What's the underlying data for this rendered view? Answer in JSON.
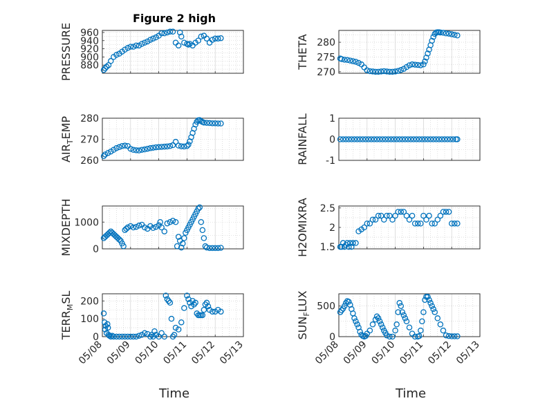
{
  "figure_title": "Figure 2 high",
  "xlabel": "Time",
  "colors": {
    "marker": "#0072BD",
    "axis": "#262626",
    "grid": "#d0d0d0"
  },
  "chart_data": [
    {
      "type": "scatter",
      "title": "Figure 2 high",
      "ylabel": "PRESSURE",
      "ylabel_sub": "",
      "yticks": [
        "880",
        "900",
        "920",
        "940",
        "960"
      ],
      "ylim": [
        860,
        965
      ],
      "xticks": [],
      "xlim": [
        "05/08",
        "05/13"
      ],
      "x": [
        0.05,
        0.1,
        0.15,
        0.22,
        0.3,
        0.4,
        0.5,
        0.6,
        0.7,
        0.8,
        0.9,
        1.0,
        1.1,
        1.2,
        1.3,
        1.4,
        1.5,
        1.6,
        1.7,
        1.8,
        1.9,
        2.0,
        2.1,
        2.2,
        2.3,
        2.4,
        2.5,
        2.6,
        2.7,
        2.75,
        2.8,
        2.9,
        3.0,
        3.05,
        3.1,
        3.2,
        3.3,
        3.4,
        3.5,
        3.6,
        3.7,
        3.8,
        3.9,
        4.0,
        4.1,
        4.2
      ],
      "y": [
        868,
        872,
        876,
        880,
        890,
        900,
        905,
        908,
        913,
        918,
        922,
        925,
        925,
        928,
        928,
        932,
        935,
        938,
        942,
        945,
        948,
        952,
        958,
        958,
        960,
        962,
        962,
        935,
        928,
        960,
        950,
        935,
        932,
        930,
        932,
        928,
        935,
        940,
        950,
        952,
        945,
        935,
        942,
        945,
        945,
        946
      ]
    },
    {
      "type": "scatter",
      "title": "",
      "ylabel": "THETA",
      "ylabel_sub": "",
      "yticks": [
        "270",
        "275",
        "280"
      ],
      "ylim": [
        269.5,
        284
      ],
      "xticks": [],
      "xlim": [
        "05/08",
        "05/13"
      ],
      "x": [
        0.05,
        0.1,
        0.2,
        0.3,
        0.4,
        0.5,
        0.6,
        0.7,
        0.8,
        0.9,
        1.0,
        1.1,
        1.2,
        1.3,
        1.4,
        1.5,
        1.6,
        1.7,
        1.8,
        1.9,
        2.0,
        2.1,
        2.2,
        2.3,
        2.4,
        2.5,
        2.6,
        2.7,
        2.8,
        2.9,
        3.0,
        3.05,
        3.1,
        3.15,
        3.2,
        3.25,
        3.3,
        3.35,
        3.4,
        3.45,
        3.5,
        3.55,
        3.6,
        3.7,
        3.8,
        3.9,
        4.0,
        4.1,
        4.2
      ],
      "y": [
        274.5,
        274.3,
        274.1,
        274,
        273.8,
        273.6,
        273.4,
        273,
        272.5,
        271.5,
        270.5,
        270.2,
        270.1,
        270,
        270,
        270.1,
        270.2,
        270.1,
        270,
        270,
        270.1,
        270.3,
        270.6,
        271,
        271.6,
        272.2,
        272.5,
        272.4,
        272.3,
        272.2,
        272.5,
        273.5,
        274.8,
        276.2,
        277.5,
        279,
        280.5,
        281.8,
        282.8,
        283.3,
        283.4,
        283.4,
        283.3,
        283.2,
        283,
        282.9,
        282.7,
        282.5,
        282.3
      ]
    },
    {
      "type": "scatter",
      "title": "",
      "ylabel": "AIR",
      "ylabel_sub": "T",
      "ylabel_tail": "EMP",
      "yticks": [
        "260",
        "270",
        "280"
      ],
      "ylim": [
        260,
        280
      ],
      "xticks": [],
      "xlim": [
        "05/08",
        "05/13"
      ],
      "x": [
        0.05,
        0.1,
        0.2,
        0.3,
        0.4,
        0.5,
        0.6,
        0.7,
        0.8,
        0.9,
        1.0,
        1.1,
        1.2,
        1.3,
        1.4,
        1.5,
        1.6,
        1.7,
        1.8,
        1.9,
        2.0,
        2.1,
        2.2,
        2.3,
        2.4,
        2.5,
        2.6,
        2.7,
        2.8,
        2.9,
        3.0,
        3.05,
        3.1,
        3.15,
        3.2,
        3.25,
        3.3,
        3.35,
        3.4,
        3.45,
        3.5,
        3.55,
        3.6,
        3.7,
        3.8,
        3.9,
        4.0,
        4.1,
        4.2
      ],
      "y": [
        262,
        262.8,
        263.5,
        264.2,
        265,
        265.8,
        266.3,
        266.8,
        267,
        266.8,
        265.5,
        265,
        264.8,
        264.7,
        265,
        265.2,
        265.5,
        265.8,
        266,
        266.2,
        266.3,
        266.4,
        266.5,
        266.6,
        266.8,
        267.2,
        268.8,
        267,
        266.7,
        266.6,
        266.8,
        267.5,
        269,
        271,
        273,
        275,
        277,
        278.3,
        279,
        279.1,
        278.6,
        278.2,
        277.9,
        277.8,
        277.7,
        277.6,
        277.6,
        277.5,
        277.5
      ]
    },
    {
      "type": "scatter",
      "title": "",
      "ylabel": "RAINFALL",
      "ylabel_sub": "",
      "yticks": [
        "-1",
        "0",
        "1"
      ],
      "ylim": [
        -1,
        1
      ],
      "xticks": [],
      "xlim": [
        "05/08",
        "05/13"
      ],
      "x": [
        0.05,
        0.15,
        0.25,
        0.35,
        0.45,
        0.55,
        0.65,
        0.75,
        0.85,
        0.95,
        1.05,
        1.15,
        1.25,
        1.35,
        1.45,
        1.55,
        1.65,
        1.75,
        1.85,
        1.95,
        2.05,
        2.15,
        2.25,
        2.35,
        2.45,
        2.55,
        2.65,
        2.75,
        2.85,
        2.95,
        3.05,
        3.15,
        3.25,
        3.35,
        3.45,
        3.55,
        3.65,
        3.75,
        3.85,
        3.95,
        4.05,
        4.15,
        4.2
      ],
      "y": [
        0,
        0,
        0,
        0,
        0,
        0,
        0,
        0,
        0,
        0,
        0,
        0,
        0,
        0,
        0,
        0,
        0,
        0,
        0,
        0,
        0,
        0,
        0,
        0,
        0,
        0,
        0,
        0,
        0,
        0,
        0,
        0,
        0,
        0,
        0,
        0,
        0,
        0,
        0,
        0,
        0,
        0,
        0
      ]
    },
    {
      "type": "scatter",
      "title": "",
      "ylabel": "MIXDEPTH",
      "ylabel_sub": "",
      "yticks": [
        "0",
        "1000"
      ],
      "ylim": [
        0,
        1600
      ],
      "xticks": [],
      "xlim": [
        "05/08",
        "05/13"
      ],
      "x": [
        0.05,
        0.1,
        0.15,
        0.2,
        0.25,
        0.3,
        0.35,
        0.4,
        0.45,
        0.5,
        0.55,
        0.6,
        0.65,
        0.7,
        0.75,
        0.8,
        0.85,
        0.9,
        1.0,
        1.1,
        1.2,
        1.3,
        1.4,
        1.5,
        1.6,
        1.7,
        1.8,
        1.9,
        2.0,
        2.05,
        2.1,
        2.2,
        2.3,
        2.4,
        2.5,
        2.6,
        2.65,
        2.7,
        2.75,
        2.8,
        2.85,
        2.9,
        2.95,
        3.0,
        3.05,
        3.1,
        3.15,
        3.2,
        3.25,
        3.3,
        3.35,
        3.4,
        3.45,
        3.5,
        3.55,
        3.6,
        3.65,
        3.7,
        3.8,
        3.9,
        4.0,
        4.1,
        4.2
      ],
      "y": [
        400,
        450,
        500,
        550,
        600,
        650,
        600,
        550,
        500,
        450,
        400,
        350,
        300,
        200,
        100,
        700,
        750,
        800,
        850,
        800,
        820,
        870,
        900,
        800,
        750,
        850,
        780,
        820,
        880,
        1000,
        800,
        650,
        950,
        1000,
        1050,
        1000,
        100,
        450,
        300,
        50,
        200,
        400,
        600,
        700,
        800,
        900,
        1000,
        1100,
        1200,
        1300,
        1400,
        1500,
        1550,
        1000,
        700,
        400,
        100,
        50,
        30,
        30,
        30,
        30,
        40
      ]
    },
    {
      "type": "scatter",
      "title": "",
      "ylabel": "H2OMIXRA",
      "ylabel_sub": "",
      "yticks": [
        "1.5",
        "2",
        "2.5"
      ],
      "ylim": [
        1.45,
        2.55
      ],
      "xticks": [],
      "xlim": [
        "05/08",
        "05/13"
      ],
      "x": [
        0.05,
        0.1,
        0.15,
        0.2,
        0.25,
        0.3,
        0.35,
        0.4,
        0.45,
        0.5,
        0.6,
        0.7,
        0.8,
        0.9,
        1.0,
        1.1,
        1.2,
        1.3,
        1.4,
        1.5,
        1.6,
        1.7,
        1.8,
        1.9,
        2.0,
        2.1,
        2.2,
        2.3,
        2.4,
        2.5,
        2.6,
        2.7,
        2.8,
        2.9,
        3.0,
        3.1,
        3.2,
        3.3,
        3.4,
        3.5,
        3.6,
        3.7,
        3.8,
        3.9,
        4.0,
        4.1,
        4.2
      ],
      "y": [
        1.5,
        1.5,
        1.6,
        1.5,
        1.55,
        1.6,
        1.5,
        1.6,
        1.5,
        1.6,
        1.6,
        1.9,
        1.95,
        2.0,
        2.1,
        2.1,
        2.2,
        2.2,
        2.3,
        2.3,
        2.2,
        2.3,
        2.3,
        2.2,
        2.3,
        2.4,
        2.4,
        2.4,
        2.3,
        2.2,
        2.3,
        2.1,
        2.1,
        2.1,
        2.3,
        2.2,
        2.3,
        2.1,
        2.1,
        2.2,
        2.3,
        2.4,
        2.4,
        2.4,
        2.1,
        2.1,
        2.1
      ]
    },
    {
      "type": "scatter",
      "title": "",
      "ylabel": "TERR",
      "ylabel_sub": "M",
      "ylabel_tail": "SL",
      "yticks": [
        "0",
        "100",
        "200"
      ],
      "ylim": [
        0,
        240
      ],
      "xticks": [
        "05/08",
        "05/09",
        "05/10",
        "05/11",
        "05/12",
        "05/13"
      ],
      "xlim": [
        "05/08",
        "05/13"
      ],
      "x": [
        0.05,
        0.08,
        0.1,
        0.12,
        0.15,
        0.18,
        0.2,
        0.22,
        0.25,
        0.3,
        0.35,
        0.4,
        0.5,
        0.6,
        0.7,
        0.8,
        0.9,
        1.0,
        1.1,
        1.2,
        1.3,
        1.4,
        1.5,
        1.6,
        1.7,
        1.75,
        1.8,
        1.85,
        1.9,
        2.0,
        2.1,
        2.2,
        2.25,
        2.3,
        2.35,
        2.4,
        2.45,
        2.5,
        2.55,
        2.6,
        2.7,
        2.8,
        2.9,
        3.0,
        3.05,
        3.1,
        3.15,
        3.2,
        3.25,
        3.3,
        3.35,
        3.4,
        3.45,
        3.5,
        3.55,
        3.6,
        3.65,
        3.7,
        3.75,
        3.8,
        3.9,
        4.0,
        4.1,
        4.2
      ],
      "y": [
        130,
        80,
        40,
        60,
        20,
        70,
        50,
        10,
        5,
        0,
        5,
        0,
        0,
        0,
        0,
        0,
        0,
        0,
        0,
        0,
        5,
        10,
        20,
        15,
        0,
        10,
        0,
        30,
        10,
        0,
        20,
        0,
        230,
        210,
        200,
        190,
        100,
        0,
        10,
        50,
        40,
        80,
        160,
        230,
        210,
        190,
        170,
        200,
        180,
        190,
        130,
        120,
        120,
        120,
        120,
        150,
        180,
        190,
        170,
        150,
        140,
        140,
        150,
        140
      ]
    },
    {
      "type": "scatter",
      "title": "",
      "ylabel": "SUN",
      "ylabel_sub": "F",
      "ylabel_tail": "LUX",
      "yticks": [
        "0",
        "500"
      ],
      "ylim": [
        0,
        700
      ],
      "xticks": [
        "05/08",
        "05/09",
        "05/10",
        "05/11",
        "05/12",
        "05/13"
      ],
      "xlim": [
        "05/08",
        "05/13"
      ],
      "x": [
        0.05,
        0.1,
        0.15,
        0.2,
        0.25,
        0.3,
        0.35,
        0.4,
        0.45,
        0.5,
        0.55,
        0.6,
        0.65,
        0.7,
        0.75,
        0.8,
        0.85,
        0.9,
        0.95,
        1.0,
        1.1,
        1.2,
        1.3,
        1.35,
        1.4,
        1.45,
        1.5,
        1.55,
        1.6,
        1.65,
        1.7,
        1.8,
        1.9,
        2.0,
        2.05,
        2.1,
        2.15,
        2.2,
        2.25,
        2.3,
        2.35,
        2.4,
        2.5,
        2.6,
        2.7,
        2.8,
        2.85,
        2.9,
        2.95,
        3.0,
        3.05,
        3.1,
        3.15,
        3.2,
        3.25,
        3.3,
        3.35,
        3.4,
        3.5,
        3.6,
        3.7,
        3.8,
        3.9,
        4.0,
        4.1,
        4.2
      ],
      "y": [
        400,
        430,
        460,
        500,
        550,
        580,
        570,
        520,
        450,
        380,
        300,
        250,
        200,
        150,
        80,
        30,
        10,
        0,
        10,
        50,
        100,
        200,
        280,
        330,
        300,
        250,
        200,
        150,
        100,
        60,
        20,
        0,
        0,
        100,
        200,
        400,
        550,
        500,
        400,
        350,
        300,
        250,
        150,
        50,
        0,
        0,
        10,
        100,
        250,
        400,
        600,
        650,
        650,
        600,
        550,
        500,
        450,
        400,
        300,
        200,
        100,
        20,
        10,
        5,
        5,
        5
      ]
    }
  ]
}
